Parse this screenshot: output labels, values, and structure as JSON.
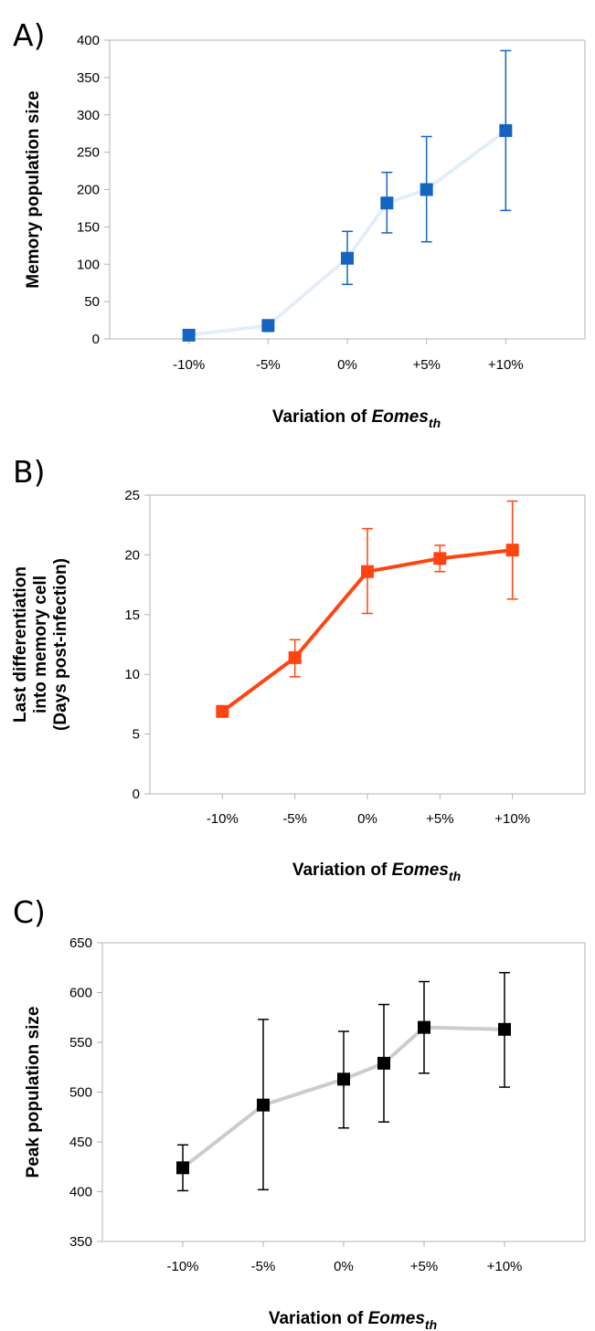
{
  "chart_data": [
    {
      "panel": "A)",
      "type": "line",
      "xlabel_prefix": "Variation of ",
      "xlabel_italic": "Eomes",
      "xlabel_sub": "th",
      "ylabel_lines": [
        "Memory population size"
      ],
      "ylim": [
        0,
        400
      ],
      "yticks": [
        0,
        50,
        100,
        150,
        200,
        250,
        300,
        350,
        400
      ],
      "tick_labels": [
        "-10%",
        "-5%",
        "0%",
        "+5%",
        "+10%"
      ],
      "tick_positions": [
        -10,
        -5,
        0,
        5,
        10
      ],
      "xlim": [
        -15,
        15
      ],
      "grid": false,
      "series": [
        {
          "x": [
            -10,
            -5,
            0,
            2.5,
            5,
            10
          ],
          "values": [
            5,
            18,
            108,
            182,
            200,
            279
          ],
          "err_low": [
            null,
            10,
            73,
            142,
            130,
            172
          ],
          "err_high": [
            null,
            24,
            144,
            223,
            271,
            386
          ],
          "color": "#1565c0",
          "line_color": "#e4eef8"
        }
      ]
    },
    {
      "panel": "B)",
      "type": "line",
      "xlabel_prefix": "Variation of ",
      "xlabel_italic": "Eomes",
      "xlabel_sub": "th",
      "ylabel_lines": [
        "Last differentiation",
        "into memory cell",
        "(Days post-infection)"
      ],
      "ylim": [
        0,
        25
      ],
      "yticks": [
        0,
        5,
        10,
        15,
        20,
        25
      ],
      "tick_labels": [
        "-10%",
        "-5%",
        "0%",
        "+5%",
        "+10%"
      ],
      "tick_positions": [
        -10,
        -5,
        0,
        5,
        10
      ],
      "xlim": [
        -15,
        15
      ],
      "grid": false,
      "series": [
        {
          "x": [
            -10,
            -5,
            0,
            5,
            10
          ],
          "values": [
            6.9,
            11.4,
            18.6,
            19.7,
            20.4
          ],
          "err_low": [
            null,
            9.8,
            15.1,
            18.6,
            16.3
          ],
          "err_high": [
            null,
            12.9,
            22.2,
            20.8,
            24.5
          ],
          "color": "#ff4411",
          "line_color": "#ff4411"
        }
      ]
    },
    {
      "panel": "C)",
      "type": "line",
      "xlabel_prefix": "Variation of ",
      "xlabel_italic": "Eomes",
      "xlabel_sub": "th",
      "ylabel_lines": [
        "Peak population size"
      ],
      "ylim": [
        350,
        650
      ],
      "yticks": [
        350,
        400,
        450,
        500,
        550,
        600,
        650
      ],
      "tick_labels": [
        "-10%",
        "-5%",
        "0%",
        "+5%",
        "+10%"
      ],
      "tick_positions": [
        -10,
        -5,
        0,
        5,
        10
      ],
      "xlim": [
        -15,
        15
      ],
      "grid": false,
      "series": [
        {
          "x": [
            -10,
            -5,
            0,
            2.5,
            5,
            10
          ],
          "values": [
            424,
            487,
            513,
            529,
            565,
            563
          ],
          "err_low": [
            401,
            402,
            464,
            470,
            519,
            505
          ],
          "err_high": [
            447,
            573,
            561,
            588,
            611,
            620
          ],
          "color": "#000000",
          "line_color": "#cccccc"
        }
      ]
    }
  ]
}
